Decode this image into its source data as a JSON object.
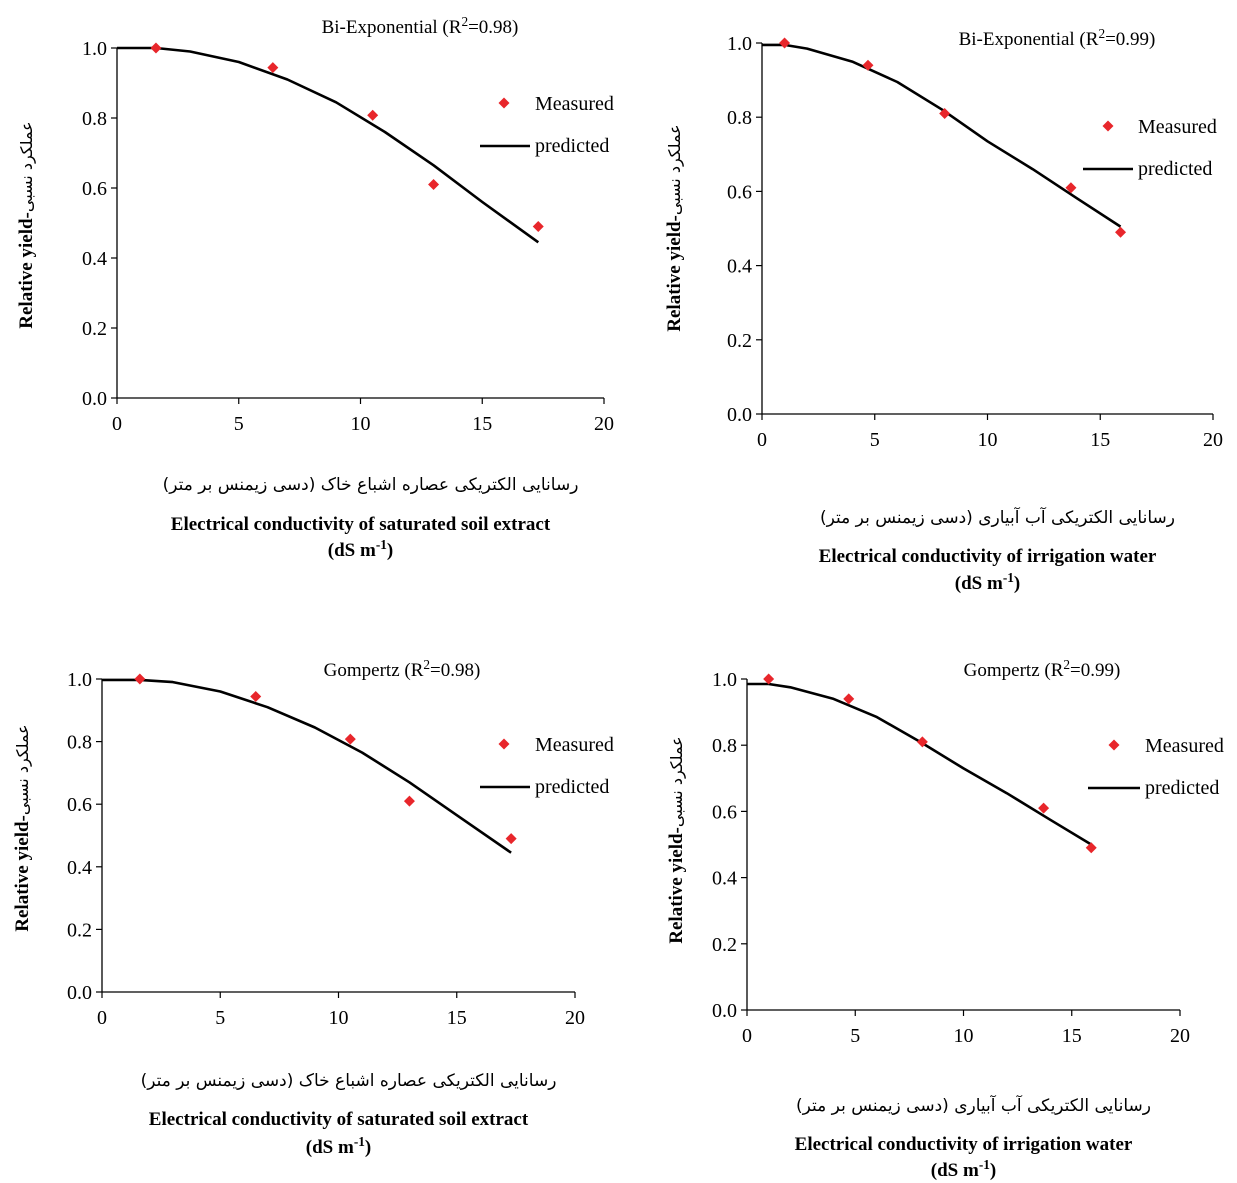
{
  "colors": {
    "marker": "#e8262b",
    "line": "#000000",
    "axis": "#000000"
  },
  "chart_data": [
    {
      "type": "scatter",
      "annotation": {
        "model": "Bi-Exponential  (R",
        "sup": "2",
        "rest": "=0.98)"
      },
      "ylabel_fa": "عملکرد نسبی",
      "ylabel_en": "Relative yield-",
      "xlabel_fa": "رسانایی الکتریکی عصاره اشباع خاک (دسی زیمنس بر متر)",
      "xlabel_en": "Electrical conductivity of saturated soil extract",
      "xunit_pre": "(dS m",
      "xunit_sup": "-1",
      "xunit_post": ")",
      "xlim": [
        0,
        20
      ],
      "ylim": [
        0,
        1
      ],
      "xticks": [
        "0",
        "5",
        "10",
        "15",
        "20"
      ],
      "yticks": [
        "0.0",
        "0.2",
        "0.4",
        "0.6",
        "0.8",
        "1.0"
      ],
      "legend_position": "right",
      "series": [
        {
          "name": "Measured",
          "kind": "points",
          "x": [
            1.6,
            6.4,
            10.5,
            13.0,
            17.3
          ],
          "y": [
            1.0,
            0.944,
            0.808,
            0.61,
            0.49
          ]
        },
        {
          "name": "predicted",
          "kind": "line",
          "x": [
            0,
            1.6,
            3,
            5,
            7,
            9,
            11,
            13,
            15,
            17.3
          ],
          "y": [
            1.0,
            1.0,
            0.99,
            0.96,
            0.91,
            0.845,
            0.76,
            0.665,
            0.56,
            0.445
          ]
        }
      ]
    },
    {
      "type": "scatter",
      "annotation": {
        "model": "Bi-Exponential  (R",
        "sup": "2",
        "rest": "=0.99)"
      },
      "ylabel_fa": "عملکرد نسبی",
      "ylabel_en": "Relative yield-",
      "xlabel_fa": "رسانایی الکتریکی آب آبیاری (دسی زیمنس بر متر)",
      "xlabel_en": "Electrical conductivity of  irrigation water",
      "xunit_pre": "(dS m",
      "xunit_sup": "-1",
      "xunit_post": ")",
      "xlim": [
        0,
        20
      ],
      "ylim": [
        0,
        1
      ],
      "xticks": [
        "0",
        "5",
        "10",
        "15",
        "20"
      ],
      "yticks": [
        "0.0",
        "0.2",
        "0.4",
        "0.6",
        "0.8",
        "1.0"
      ],
      "legend_position": "right",
      "series": [
        {
          "name": "Measured",
          "kind": "points",
          "x": [
            1.0,
            4.7,
            8.1,
            13.7,
            15.9
          ],
          "y": [
            1.0,
            0.94,
            0.81,
            0.61,
            0.49
          ]
        },
        {
          "name": "predicted",
          "kind": "line",
          "x": [
            0,
            1.0,
            2,
            4,
            6,
            8,
            10,
            12,
            14,
            15.9
          ],
          "y": [
            0.995,
            0.995,
            0.985,
            0.95,
            0.895,
            0.82,
            0.735,
            0.66,
            0.58,
            0.505
          ]
        }
      ]
    },
    {
      "type": "scatter",
      "annotation": {
        "model": "Gompertz (R",
        "sup": "2",
        "rest": "=0.98)"
      },
      "ylabel_fa": "عملکرد نسبی",
      "ylabel_en": "Relative yield-",
      "xlabel_fa": "رسانایی الکتریکی عصاره اشباع خاک (دسی زیمنس بر متر)",
      "xlabel_en": "Electrical conductivity of saturated soil extract",
      "xunit_pre": "(dS m",
      "xunit_sup": "-1",
      "xunit_post": ")",
      "xlim": [
        0,
        20
      ],
      "ylim": [
        0,
        1
      ],
      "xticks": [
        "0",
        "5",
        "10",
        "15",
        "20"
      ],
      "yticks": [
        "0.0",
        "0.2",
        "0.4",
        "0.6",
        "0.8",
        "1.0"
      ],
      "legend_position": "right",
      "series": [
        {
          "name": "Measured",
          "kind": "points",
          "x": [
            1.6,
            6.5,
            10.5,
            13.0,
            17.3
          ],
          "y": [
            1.0,
            0.944,
            0.808,
            0.61,
            0.49
          ]
        },
        {
          "name": "predicted",
          "kind": "line",
          "x": [
            0,
            1.6,
            3,
            5,
            7,
            9,
            11,
            13,
            15,
            17.3
          ],
          "y": [
            0.997,
            0.997,
            0.99,
            0.96,
            0.91,
            0.845,
            0.765,
            0.67,
            0.565,
            0.445
          ]
        }
      ]
    },
    {
      "type": "scatter",
      "annotation": {
        "model": "Gompertz (R",
        "sup": "2",
        "rest": "=0.99)"
      },
      "ylabel_fa": "عملکرد نسبی",
      "ylabel_en": "Relative yield-",
      "xlabel_fa": "رسانایی الکتریکی آب آبیاری (دسی زیمنس بر متر)",
      "xlabel_en": "Electrical conductivity of  irrigation water",
      "xunit_pre": "(dS m",
      "xunit_sup": "-1",
      "xunit_post": ")",
      "xlim": [
        0,
        20
      ],
      "ylim": [
        0,
        1
      ],
      "xticks": [
        "0",
        "5",
        "10",
        "15",
        "20"
      ],
      "yticks": [
        "0.0",
        "0.2",
        "0.4",
        "0.6",
        "0.8",
        "1.0"
      ],
      "legend_position": "right",
      "series": [
        {
          "name": "Measured",
          "kind": "points",
          "x": [
            1.0,
            4.7,
            8.1,
            13.7,
            15.9
          ],
          "y": [
            1.0,
            0.94,
            0.81,
            0.61,
            0.49
          ]
        },
        {
          "name": "predicted",
          "kind": "line",
          "x": [
            0,
            1.0,
            2,
            4,
            6,
            8,
            10,
            12,
            14,
            15.9
          ],
          "y": [
            0.985,
            0.985,
            0.975,
            0.94,
            0.885,
            0.81,
            0.73,
            0.655,
            0.575,
            0.5
          ]
        }
      ]
    }
  ]
}
